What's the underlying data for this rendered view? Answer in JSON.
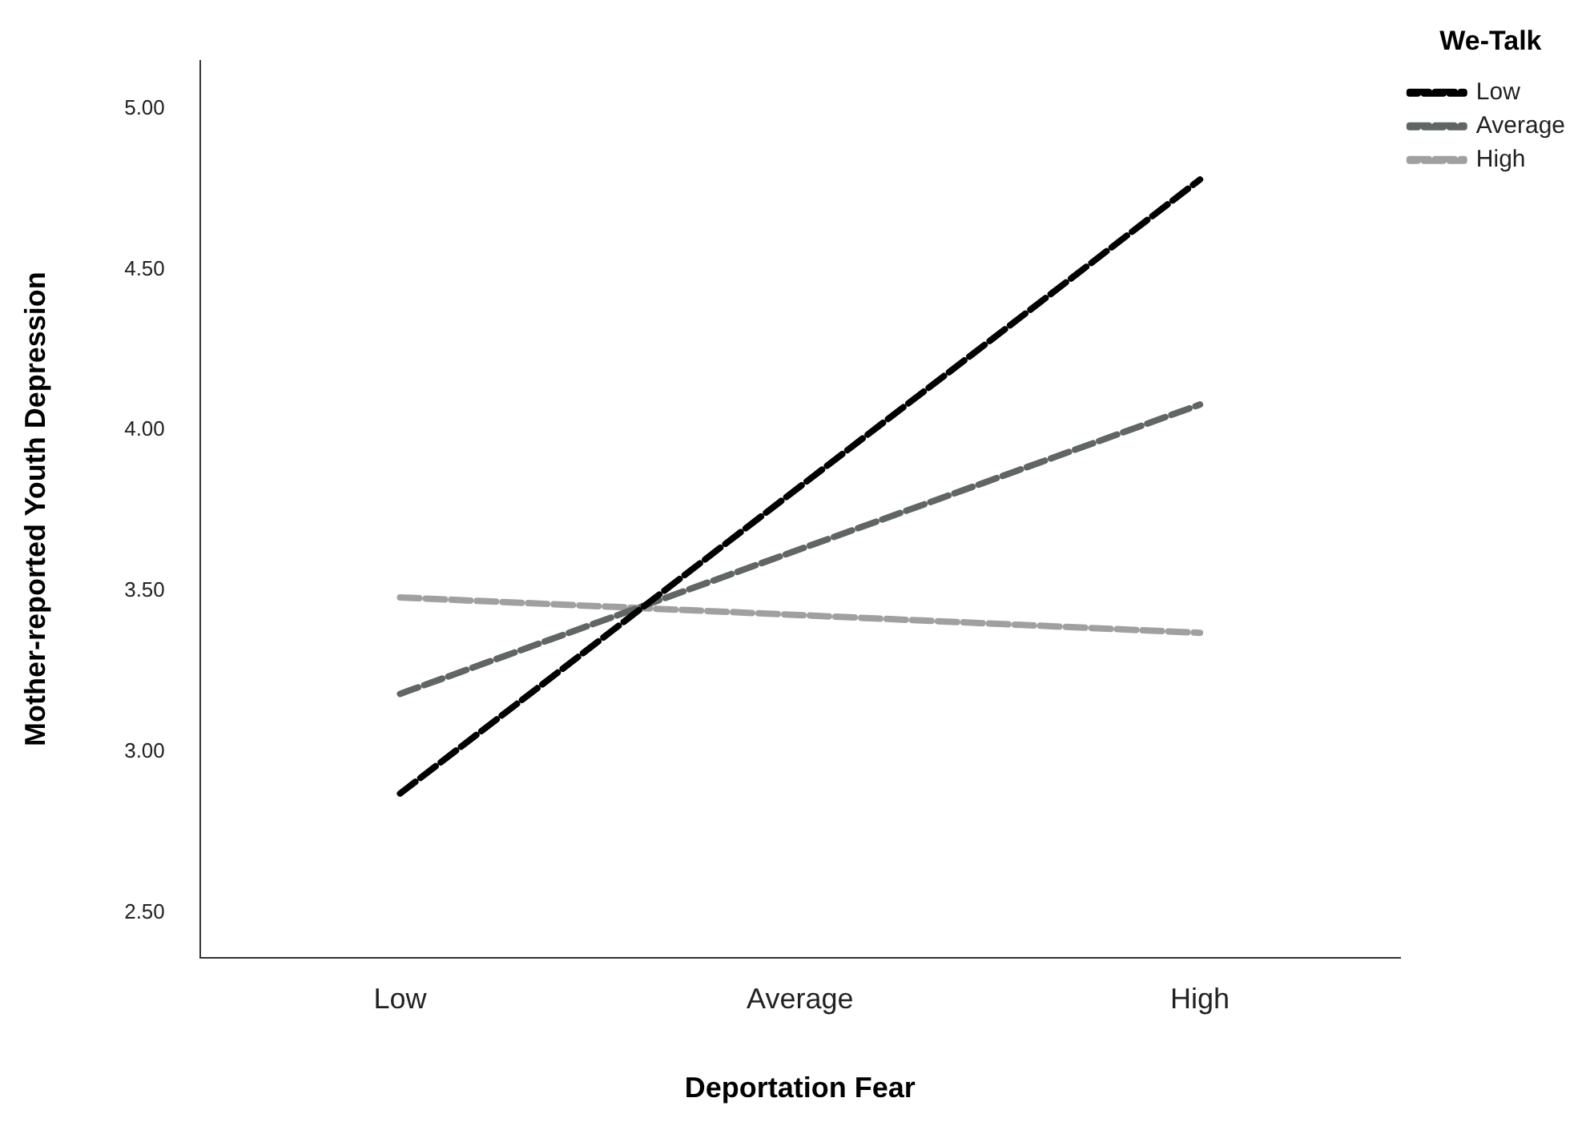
{
  "chart_data": {
    "type": "line",
    "xlabel": "Deportation Fear",
    "ylabel": "Mother-reported Youth Depression",
    "legend_title": "We-Talk",
    "categories": [
      "Low",
      "Average",
      "High"
    ],
    "series": [
      {
        "name": "Low",
        "color": "#000000",
        "values": [
          2.87,
          null,
          4.78
        ],
        "line_style": "dashed"
      },
      {
        "name": "Average",
        "color": "#5f6664",
        "values": [
          3.18,
          null,
          4.08
        ],
        "line_style": "dashed"
      },
      {
        "name": "High",
        "color": "#a0a0a0",
        "values": [
          3.48,
          null,
          3.37
        ],
        "line_style": "dashed"
      }
    ],
    "ylim": [
      2.36,
      5.15
    ],
    "yticks": [
      {
        "value": 2.5,
        "label": "2.50"
      },
      {
        "value": 3,
        "label": "3.00"
      },
      {
        "value": 3.5,
        "label": "3.50"
      },
      {
        "value": 4,
        "label": "4.00"
      },
      {
        "value": 4.5,
        "label": "4.50"
      },
      {
        "value": 5,
        "label": "5.00"
      }
    ],
    "grid": false,
    "legend": "top right",
    "marker": "none"
  }
}
